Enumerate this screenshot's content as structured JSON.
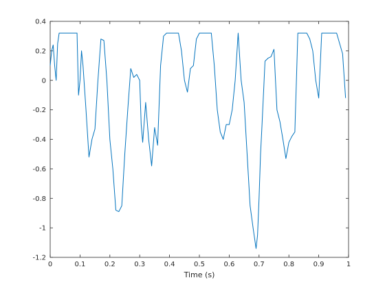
{
  "chart_data": {
    "type": "line",
    "title": "",
    "xlabel": "Time (s)",
    "ylabel": "",
    "xlim": [
      0,
      1
    ],
    "ylim": [
      -1.2,
      0.4
    ],
    "xticks": [
      "0",
      "0.1",
      "0.2",
      "0.3",
      "0.4",
      "0.5",
      "0.6",
      "0.7",
      "0.8",
      "0.9",
      "1"
    ],
    "yticks": [
      "0.4",
      "0.2",
      "0",
      "-0.2",
      "-0.4",
      "-0.6",
      "-0.8",
      "-1",
      "-1.2"
    ],
    "grid": false,
    "line_color": "#0072BD",
    "series": [
      {
        "x": [
          0,
          0.005,
          0.01,
          0.015,
          0.02,
          0.025,
          0.03,
          0.04,
          0.05,
          0.06,
          0.07,
          0.08,
          0.09,
          0.095,
          0.1,
          0.105,
          0.11,
          0.115,
          0.12,
          0.13,
          0.14,
          0.15,
          0.16,
          0.17,
          0.18,
          0.19,
          0.2,
          0.21,
          0.22,
          0.23,
          0.24,
          0.25,
          0.26,
          0.27,
          0.28,
          0.29,
          0.3,
          0.305,
          0.31,
          0.32,
          0.33,
          0.34,
          0.35,
          0.36,
          0.37,
          0.38,
          0.39,
          0.4,
          0.41,
          0.42,
          0.43,
          0.44,
          0.45,
          0.46,
          0.47,
          0.48,
          0.49,
          0.5,
          0.51,
          0.52,
          0.53,
          0.54,
          0.55,
          0.56,
          0.57,
          0.58,
          0.59,
          0.6,
          0.61,
          0.62,
          0.63,
          0.64,
          0.65,
          0.66,
          0.67,
          0.68,
          0.69,
          0.695,
          0.7,
          0.705,
          0.71,
          0.72,
          0.73,
          0.74,
          0.75,
          0.76,
          0.77,
          0.78,
          0.79,
          0.8,
          0.81,
          0.82,
          0.83,
          0.84,
          0.85,
          0.86,
          0.87,
          0.88,
          0.89,
          0.9,
          0.91,
          0.92,
          0.93,
          0.94,
          0.95,
          0.96,
          0.97,
          0.98,
          0.99
        ],
        "y": [
          0.1,
          0.2,
          0.24,
          0.1,
          0.0,
          0.25,
          0.32,
          0.32,
          0.32,
          0.32,
          0.32,
          0.32,
          0.32,
          -0.1,
          0.0,
          0.2,
          0.1,
          -0.05,
          -0.2,
          -0.52,
          -0.4,
          -0.33,
          0.0,
          0.28,
          0.27,
          0.0,
          -0.4,
          -0.6,
          -0.88,
          -0.89,
          -0.85,
          -0.5,
          -0.2,
          0.08,
          0.02,
          0.04,
          0.0,
          -0.3,
          -0.42,
          -0.15,
          -0.4,
          -0.58,
          -0.32,
          -0.44,
          0.1,
          0.3,
          0.32,
          0.32,
          0.32,
          0.32,
          0.32,
          0.2,
          0.0,
          -0.08,
          0.08,
          0.1,
          0.28,
          0.32,
          0.32,
          0.32,
          0.32,
          0.32,
          0.1,
          -0.2,
          -0.35,
          -0.4,
          -0.3,
          -0.3,
          -0.2,
          0.0,
          0.32,
          0.0,
          -0.15,
          -0.5,
          -0.85,
          -1.0,
          -1.14,
          -1.05,
          -0.8,
          -0.5,
          -0.3,
          0.13,
          0.15,
          0.16,
          0.21,
          -0.2,
          -0.28,
          -0.4,
          -0.53,
          -0.42,
          -0.38,
          -0.35,
          0.32,
          0.32,
          0.32,
          0.32,
          0.28,
          0.2,
          0.0,
          -0.12,
          0.32,
          0.32,
          0.32,
          0.32,
          0.32,
          0.32,
          0.25,
          0.18,
          -0.12
        ]
      }
    ]
  }
}
